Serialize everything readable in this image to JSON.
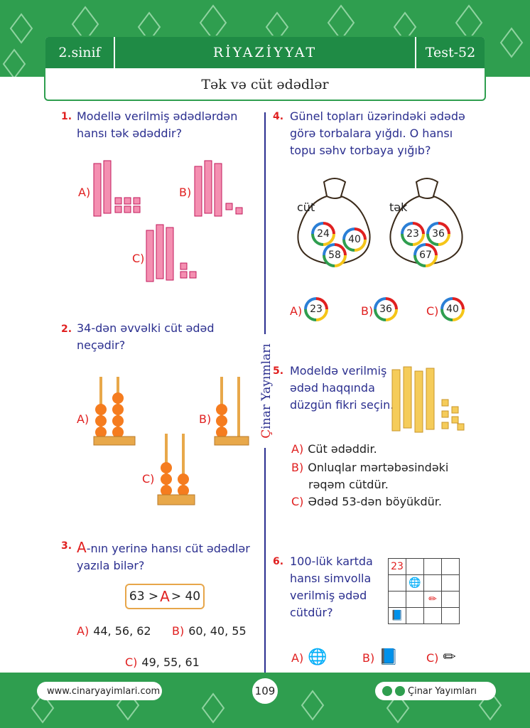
{
  "header": {
    "grade": "2.sinif",
    "subject": "RİYAZİYYAT",
    "test": "Test-52",
    "topic": "Tək və cüt ədədlər"
  },
  "side_brand": {
    "c": "Ç",
    "rest": "inar Yayımları"
  },
  "q1": {
    "num": "1.",
    "text1": "Modellə verilmiş ədədlərdən",
    "text2": "hansı tək ədəddir?",
    "a": "A)",
    "b": "B)",
    "c": "C)"
  },
  "q2": {
    "num": "2.",
    "text1": "34-dən əvvəlki cüt ədəd",
    "text2": "neçədir?",
    "a": "A)",
    "b": "B)",
    "c": "C)"
  },
  "q3": {
    "num": "3.",
    "A": "A",
    "text1": "-nın yerinə hansı cüt ədədlər",
    "text2": "yazıla bilər?",
    "ineq_left": "63 >",
    "ineq_A": "A",
    "ineq_right": "> 40",
    "opts": [
      {
        "l": "A)",
        "v": "44, 56, 62"
      },
      {
        "l": "B)",
        "v": "60, 40, 55"
      },
      {
        "l": "C)",
        "v": "49, 55, 61"
      }
    ]
  },
  "q4": {
    "num": "4.",
    "text1": "Günel topları üzərindəki ədədə",
    "text2": "görə torbalara yığdı. O hansı",
    "text3": "topu səhv torbaya yığıb?",
    "bag1_label": "cüt",
    "bag1_balls": [
      "24",
      "40",
      "58"
    ],
    "bag2_label": "tək",
    "bag2_balls": [
      "23",
      "36",
      "67"
    ],
    "opts": [
      {
        "l": "A)",
        "v": "23"
      },
      {
        "l": "B)",
        "v": "36"
      },
      {
        "l": "C)",
        "v": "40"
      }
    ]
  },
  "q5": {
    "num": "5.",
    "text1": "Modeldə verilmiş",
    "text2": "ədəd haqqında",
    "text3": "düzgün fikri seçin.",
    "opts": [
      {
        "l": "A)",
        "v": "Cüt ədəddir."
      },
      {
        "l": "B)",
        "v": "Onluqlar mərtəbəsindəki"
      },
      {
        "l": "",
        "v": "rəqəm cütdür."
      },
      {
        "l": "C)",
        "v": "Ədəd 53-dən böyükdür."
      }
    ]
  },
  "q6": {
    "num": "6.",
    "text1": "100-lük kartda",
    "text2": "hansı simvolla",
    "text3": "verilmiş ədəd",
    "text4": "cütdür?",
    "grid_first": "23",
    "a": "A)",
    "b": "B)",
    "c": "C)"
  },
  "footer": {
    "website": "www.cinaryayimlari.com",
    "page": "109",
    "brand": "Çinar Yayımları"
  },
  "colors": {
    "green": "#2f9e4f",
    "dark_green": "#1f8b45",
    "red": "#e02020",
    "navy": "#2b2f8f",
    "pink": "#f48fb1",
    "orange": "#f57c1f",
    "yellow_block": "#f5cc5a"
  }
}
